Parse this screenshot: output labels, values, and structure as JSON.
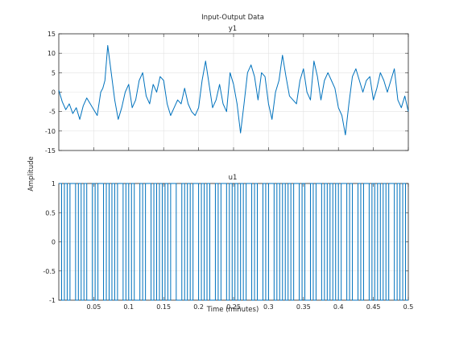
{
  "figure": {
    "title": "Input-Output Data",
    "ylabel": "Amplitude",
    "xlabel": "Time (minutes)"
  },
  "colors": {
    "line": "#0072BD",
    "grid": "#e3e3e3",
    "axis": "#262626",
    "background": "#ffffff"
  },
  "chart_data": [
    {
      "type": "line",
      "title": "y1",
      "xlim": [
        0,
        0.5
      ],
      "ylim": [
        -15,
        15
      ],
      "grid": true,
      "xticks": [],
      "yticks": [
        "-15",
        "-10",
        "-5",
        "0",
        "5",
        "10",
        "15"
      ],
      "series": [
        {
          "x": [
            0.0,
            0.005,
            0.01,
            0.015,
            0.02,
            0.025,
            0.03,
            0.035,
            0.04,
            0.045,
            0.05,
            0.055,
            0.06,
            0.063,
            0.066,
            0.07,
            0.075,
            0.08,
            0.085,
            0.09,
            0.095,
            0.1,
            0.105,
            0.11,
            0.115,
            0.12,
            0.125,
            0.13,
            0.135,
            0.14,
            0.145,
            0.15,
            0.155,
            0.16,
            0.165,
            0.17,
            0.175,
            0.18,
            0.185,
            0.19,
            0.195,
            0.2,
            0.205,
            0.21,
            0.215,
            0.22,
            0.225,
            0.23,
            0.235,
            0.24,
            0.245,
            0.25,
            0.255,
            0.26,
            0.265,
            0.27,
            0.275,
            0.28,
            0.285,
            0.29,
            0.295,
            0.3,
            0.305,
            0.31,
            0.315,
            0.32,
            0.325,
            0.33,
            0.335,
            0.34,
            0.345,
            0.35,
            0.355,
            0.36,
            0.365,
            0.37,
            0.375,
            0.38,
            0.385,
            0.39,
            0.395,
            0.4,
            0.405,
            0.41,
            0.415,
            0.42,
            0.425,
            0.43,
            0.435,
            0.44,
            0.445,
            0.45,
            0.455,
            0.46,
            0.465,
            0.47,
            0.475,
            0.48,
            0.485,
            0.49,
            0.495,
            0.5
          ],
          "values": [
            0.5,
            -2.5,
            -4.5,
            -3,
            -5.5,
            -4,
            -7,
            -3.5,
            -1.5,
            -3,
            -4.5,
            -6,
            0,
            1,
            3,
            12,
            5,
            -2,
            -7,
            -4,
            0,
            2,
            -4,
            -2,
            3,
            5,
            -1,
            -3,
            2,
            0,
            4,
            3,
            -3,
            -6,
            -4,
            -2,
            -3,
            1,
            -3,
            -5,
            -6,
            -4,
            3,
            8,
            2,
            -4,
            -2,
            2,
            -3,
            -5,
            5,
            2,
            -3,
            -10.5,
            -3,
            5,
            7,
            4,
            -2,
            5,
            4,
            -3,
            -7,
            0,
            3,
            9.5,
            4,
            -1,
            -2,
            -3,
            3,
            6,
            0,
            -2,
            8,
            4,
            -2,
            3,
            5,
            3,
            1,
            -4,
            -6,
            -11,
            -3,
            4,
            6,
            3,
            0,
            3,
            4,
            -2,
            1,
            5,
            3,
            0,
            3,
            6,
            -2,
            -4,
            -1,
            -5
          ]
        }
      ]
    },
    {
      "type": "line",
      "title": "u1",
      "xlim": [
        0,
        0.5
      ],
      "ylim": [
        -1,
        1
      ],
      "grid": true,
      "xticks": [
        "0.05",
        "0.1",
        "0.15",
        "0.2",
        "0.25",
        "0.3",
        "0.35",
        "0.4",
        "0.45",
        "0.5"
      ],
      "yticks": [
        "-1",
        "-0.5",
        "0",
        "0.5",
        "1"
      ],
      "series": [
        {
          "x": [
            0.0,
            0.004,
            0.008,
            0.012,
            0.016,
            0.02,
            0.024,
            0.028,
            0.032,
            0.036,
            0.04,
            0.044,
            0.048,
            0.052,
            0.056,
            0.06,
            0.064,
            0.068,
            0.072,
            0.076,
            0.08,
            0.084,
            0.088,
            0.092,
            0.096,
            0.1,
            0.104,
            0.108,
            0.112,
            0.116,
            0.12,
            0.124,
            0.128,
            0.132,
            0.136,
            0.14,
            0.144,
            0.148,
            0.152,
            0.156,
            0.16,
            0.164,
            0.168,
            0.172,
            0.176,
            0.18,
            0.184,
            0.188,
            0.192,
            0.196,
            0.2,
            0.204,
            0.208,
            0.212,
            0.216,
            0.22,
            0.224,
            0.228,
            0.232,
            0.236,
            0.24,
            0.244,
            0.248,
            0.252,
            0.256,
            0.26,
            0.264,
            0.268,
            0.272,
            0.276,
            0.28,
            0.284,
            0.288,
            0.292,
            0.296,
            0.3,
            0.304,
            0.308,
            0.312,
            0.316,
            0.32,
            0.324,
            0.328,
            0.332,
            0.336,
            0.34,
            0.344,
            0.348,
            0.352,
            0.356,
            0.36,
            0.364,
            0.368,
            0.372,
            0.376,
            0.38,
            0.384,
            0.388,
            0.392,
            0.396,
            0.4,
            0.404,
            0.408,
            0.412,
            0.416,
            0.42,
            0.424,
            0.428,
            0.432,
            0.436,
            0.44,
            0.444,
            0.448,
            0.452,
            0.456,
            0.46,
            0.464,
            0.468,
            0.472,
            0.476,
            0.48,
            0.484,
            0.488,
            0.492,
            0.496
          ],
          "values": [
            1,
            -1,
            1,
            -1,
            1,
            1,
            -1,
            1,
            -1,
            1,
            -1,
            -1,
            1,
            -1,
            1,
            1,
            -1,
            1,
            -1,
            1,
            -1,
            1,
            1,
            -1,
            1,
            -1,
            1,
            -1,
            -1,
            1,
            -1,
            1,
            1,
            -1,
            1,
            -1,
            1,
            -1,
            1,
            -1,
            1,
            1,
            -1,
            -1,
            1,
            -1,
            1,
            -1,
            1,
            1,
            -1,
            1,
            -1,
            1,
            -1,
            -1,
            1,
            -1,
            1,
            1,
            -1,
            1,
            -1,
            1,
            -1,
            1,
            -1,
            1,
            1,
            -1,
            1,
            -1,
            -1,
            1,
            -1,
            1,
            1,
            -1,
            1,
            -1,
            1,
            -1,
            1,
            -1,
            1,
            1,
            -1,
            1,
            -1,
            -1,
            1,
            -1,
            1,
            1,
            -1,
            1,
            -1,
            1,
            -1,
            1,
            -1,
            1,
            1,
            -1,
            1,
            -1,
            -1,
            1,
            -1,
            1,
            1,
            -1,
            1,
            -1,
            1,
            -1,
            1,
            -1,
            1,
            1,
            -1,
            1,
            -1,
            1,
            -1
          ]
        }
      ]
    }
  ]
}
